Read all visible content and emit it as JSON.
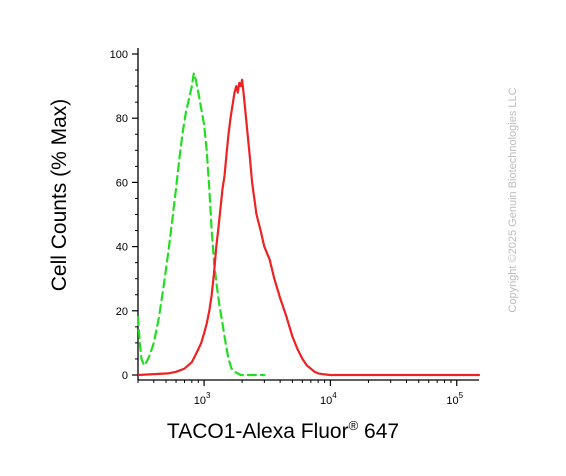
{
  "chart_data": {
    "type": "line",
    "title": "",
    "xlabel": "TACO1-Alexa Fluor",
    "xlabel_mark": "®",
    "xlabel_suffix": " 647",
    "ylabel": "Cell Counts (% Max)",
    "xscale": "log",
    "xlim": [
      300,
      150000
    ],
    "ylim": [
      0,
      100
    ],
    "yticks": [
      0,
      20,
      40,
      60,
      80,
      100
    ],
    "xticks": [
      {
        "value": 1000,
        "base": "10",
        "exp": "3"
      },
      {
        "value": 10000,
        "base": "10",
        "exp": "4"
      },
      {
        "value": 100000,
        "base": "10",
        "exp": "5"
      }
    ],
    "grid": false,
    "series": [
      {
        "color": "#22dd22",
        "style": "dashed",
        "x": [
          300,
          310,
          320,
          335,
          350,
          370,
          400,
          440,
          480,
          520,
          560,
          600,
          640,
          680,
          720,
          760,
          800,
          830,
          860,
          880,
          900,
          930,
          960,
          1000,
          1050,
          1100,
          1150,
          1200,
          1260,
          1320,
          1400,
          1480,
          1560,
          1650,
          1750,
          1850,
          1950,
          2100,
          2300,
          2600,
          3000
        ],
        "y": [
          18,
          10,
          5,
          3,
          4,
          6,
          10,
          18,
          28,
          38,
          48,
          58,
          68,
          76,
          82,
          86,
          90,
          94,
          92,
          90,
          88,
          85,
          82,
          78,
          70,
          58,
          45,
          35,
          28,
          22,
          16,
          10,
          5,
          2,
          1,
          0.5,
          0,
          0,
          0,
          0,
          0
        ]
      },
      {
        "color": "#ee2222",
        "style": "solid",
        "x": [
          300,
          420,
          520,
          600,
          700,
          800,
          850,
          900,
          950,
          1000,
          1050,
          1100,
          1150,
          1200,
          1250,
          1300,
          1350,
          1400,
          1450,
          1500,
          1560,
          1620,
          1680,
          1740,
          1800,
          1850,
          1900,
          1950,
          2000,
          2050,
          2100,
          2200,
          2300,
          2400,
          2500,
          2600,
          2800,
          3000,
          3300,
          3600,
          4000,
          4500,
          5000,
          5500,
          6000,
          6500,
          7000,
          7500,
          8000,
          9000,
          10000,
          15000,
          20000,
          50000,
          100000,
          150000
        ],
        "y": [
          0,
          0.3,
          0.5,
          1,
          2,
          4,
          6,
          8,
          10,
          13,
          16,
          20,
          25,
          32,
          40,
          46,
          52,
          58,
          62,
          68,
          75,
          80,
          84,
          88,
          90,
          88,
          91,
          90,
          92,
          88,
          84,
          76,
          68,
          60,
          55,
          50,
          45,
          40,
          36,
          30,
          24,
          18,
          12,
          8,
          5,
          3,
          2,
          1,
          0.5,
          0.2,
          0,
          0,
          0,
          0,
          0,
          0
        ]
      }
    ]
  },
  "copyright": "Copyright ©2025 Genuin Biotechnologies LLC"
}
